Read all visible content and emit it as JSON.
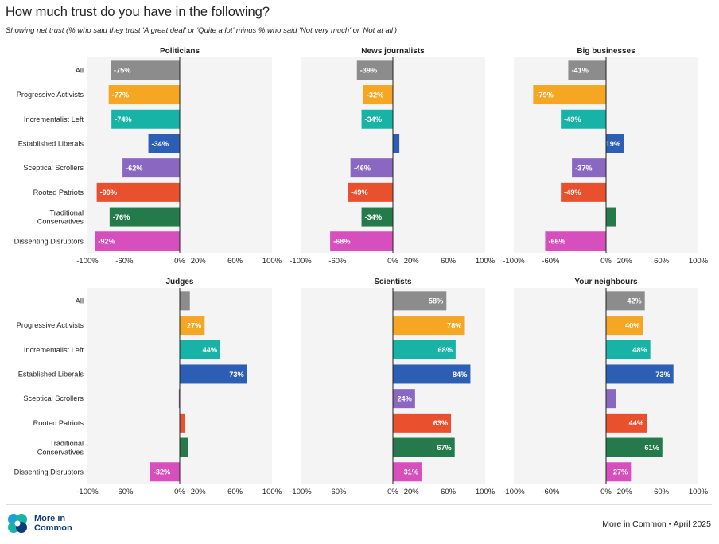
{
  "title": "How much trust do you have in the following?",
  "subtitle": "Showing net trust (% who said they trust 'A great deal' or 'Quite a lot' minus % who said 'Not very much' or 'Not at all')",
  "source": "More in Common • April 2025",
  "logo": {
    "name": "More in Common",
    "line1": "More in",
    "line2": "Common",
    "icon": "more-in-common-logo-icon"
  },
  "colors": {
    "All": "#8c8c8c",
    "Progressive Activists": "#f5a623",
    "Incrementalist Left": "#17b3a6",
    "Established Liberals": "#2c5fb3",
    "Sceptical Scrollers": "#8a67c0",
    "Rooted Patriots": "#e8502e",
    "Traditional Conservatives": "#257a4b",
    "Dissenting Disruptors": "#d64fbd",
    "panel_bg": "#f4f4f4"
  },
  "chart_data": [
    {
      "type": "bar",
      "orientation": "horizontal",
      "title": "Politicians",
      "categories": [
        "All",
        "Progressive Activists",
        "Incrementalist Left",
        "Established Liberals",
        "Sceptical Scrollers",
        "Rooted Patriots",
        "Traditional Conservatives",
        "Dissenting Disruptors"
      ],
      "values": [
        -75,
        -77,
        -74,
        -34,
        -62,
        -90,
        -76,
        -92
      ],
      "labels": [
        "-75%",
        "-77%",
        "-74%",
        "-34%",
        "-62%",
        "-90%",
        "-76%",
        "-92%"
      ],
      "xlim": [
        -100,
        100
      ],
      "ticks": [
        "-100%",
        "-60%",
        "0%",
        "20%",
        "60%",
        "100%"
      ],
      "tick_values": [
        -100,
        -60,
        0,
        20,
        60,
        100
      ]
    },
    {
      "type": "bar",
      "orientation": "horizontal",
      "title": "News journalists",
      "categories": [
        "All",
        "Progressive Activists",
        "Incrementalist Left",
        "Established Liberals",
        "Sceptical Scrollers",
        "Rooted Patriots",
        "Traditional Conservatives",
        "Dissenting Disruptors"
      ],
      "values": [
        -39,
        -32,
        -34,
        7,
        -46,
        -49,
        -34,
        -68
      ],
      "labels": [
        "-39%",
        "-32%",
        "-34%",
        "",
        "-46%",
        "-49%",
        "-34%",
        "-68%"
      ],
      "xlim": [
        -100,
        100
      ],
      "ticks": [
        "-100%",
        "-60%",
        "0%",
        "20%",
        "60%",
        "100%"
      ],
      "tick_values": [
        -100,
        -60,
        0,
        20,
        60,
        100
      ]
    },
    {
      "type": "bar",
      "orientation": "horizontal",
      "title": "Big businesses",
      "categories": [
        "All",
        "Progressive Activists",
        "Incrementalist Left",
        "Established Liberals",
        "Sceptical Scrollers",
        "Rooted Patriots",
        "Traditional Conservatives",
        "Dissenting Disruptors"
      ],
      "values": [
        -41,
        -79,
        -49,
        19,
        -37,
        -49,
        11,
        -66
      ],
      "labels": [
        "-41%",
        "-79%",
        "-49%",
        "19%",
        "-37%",
        "-49%",
        "",
        "-66%"
      ],
      "xlim": [
        -100,
        100
      ],
      "ticks": [
        "-100%",
        "-60%",
        "0%",
        "20%",
        "60%",
        "100%"
      ],
      "tick_values": [
        -100,
        -60,
        0,
        20,
        60,
        100
      ]
    },
    {
      "type": "bar",
      "orientation": "horizontal",
      "title": "Judges",
      "categories": [
        "All",
        "Progressive Activists",
        "Incrementalist Left",
        "Established Liberals",
        "Sceptical Scrollers",
        "Rooted Patriots",
        "Traditional Conservatives",
        "Dissenting Disruptors"
      ],
      "values": [
        11,
        27,
        44,
        73,
        -1,
        6,
        9,
        -32
      ],
      "labels": [
        "",
        "27%",
        "44%",
        "73%",
        "",
        "",
        "",
        "-32%"
      ],
      "xlim": [
        -100,
        100
      ],
      "ticks": [
        "-100%",
        "-60%",
        "0%",
        "20%",
        "60%",
        "100%"
      ],
      "tick_values": [
        -100,
        -60,
        0,
        20,
        60,
        100
      ]
    },
    {
      "type": "bar",
      "orientation": "horizontal",
      "title": "Scientists",
      "categories": [
        "All",
        "Progressive Activists",
        "Incrementalist Left",
        "Established Liberals",
        "Sceptical Scrollers",
        "Rooted Patriots",
        "Traditional Conservatives",
        "Dissenting Disruptors"
      ],
      "values": [
        58,
        78,
        68,
        84,
        24,
        63,
        67,
        31
      ],
      "labels": [
        "58%",
        "78%",
        "68%",
        "84%",
        "24%",
        "63%",
        "67%",
        "31%"
      ],
      "xlim": [
        -100,
        100
      ],
      "ticks": [
        "-100%",
        "-60%",
        "0%",
        "20%",
        "60%",
        "100%"
      ],
      "tick_values": [
        -100,
        -60,
        0,
        20,
        60,
        100
      ]
    },
    {
      "type": "bar",
      "orientation": "horizontal",
      "title": "Your neighbours",
      "categories": [
        "All",
        "Progressive Activists",
        "Incrementalist Left",
        "Established Liberals",
        "Sceptical Scrollers",
        "Rooted Patriots",
        "Traditional Conservatives",
        "Dissenting Disruptors"
      ],
      "values": [
        42,
        40,
        48,
        73,
        11,
        44,
        61,
        27
      ],
      "labels": [
        "42%",
        "40%",
        "48%",
        "73%",
        "",
        "44%",
        "61%",
        "27%"
      ],
      "xlim": [
        -100,
        100
      ],
      "ticks": [
        "-100%",
        "-60%",
        "0%",
        "20%",
        "60%",
        "100%"
      ],
      "tick_values": [
        -100,
        -60,
        0,
        20,
        60,
        100
      ]
    }
  ]
}
